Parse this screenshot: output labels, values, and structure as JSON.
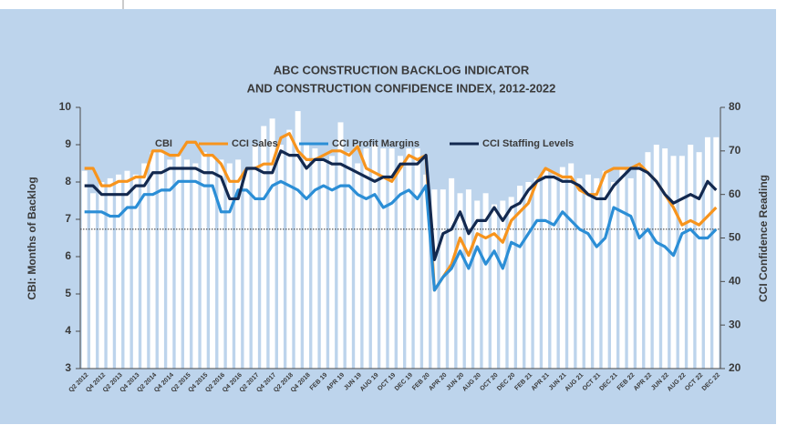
{
  "chart_data": {
    "type": "combo",
    "title": [
      "ABC CONSTRUCTION BACKLOG INDICATOR",
      "AND CONSTRUCTION CONFIDENCE INDEX, 2012-2022"
    ],
    "y_label": "CBI: Months of Backlog",
    "y2_label": "CCI Confidence Reading",
    "categories": [
      "Q2 2012",
      null,
      "Q4 2012",
      null,
      "Q2 2013",
      null,
      "Q4 2013",
      null,
      "Q2 2014",
      null,
      "Q4 2014",
      null,
      "Q2 2015",
      null,
      "Q4 2015",
      null,
      "Q2 2016",
      null,
      "Q4 2016",
      null,
      "Q2 2017",
      null,
      "Q4 2017",
      null,
      "Q2 2018",
      null,
      "Q4 2018",
      null,
      "FEB 19",
      null,
      "APR 19",
      null,
      "JUN 19",
      null,
      "AUG 19",
      null,
      "OCT 19",
      null,
      "DEC 19",
      null,
      "FEB 20",
      null,
      "APR 20",
      null,
      "JUN 20",
      null,
      "AUG 20",
      null,
      "OCT 20",
      null,
      "DEC 20",
      null,
      "FEB 21",
      null,
      "APR 21",
      null,
      "JUN 21",
      null,
      "AUG 21",
      null,
      "OCT 21",
      null,
      "DEC 21",
      null,
      "FEB 22",
      null,
      "APR 22",
      null,
      "JUN 22",
      null,
      "AUG 22",
      null,
      "OCT 22",
      null,
      "DEC 22"
    ],
    "series": [
      {
        "name": "CBI",
        "type": "bar",
        "axis": "y",
        "color": "#ffffff",
        "values": [
          8.3,
          7.7,
          8.0,
          8.1,
          8.2,
          8.3,
          8.2,
          8.5,
          8.8,
          8.8,
          8.6,
          8.7,
          8.6,
          8.5,
          8.8,
          8.7,
          8.6,
          8.5,
          8.6,
          8.3,
          9.0,
          9.5,
          9.7,
          9.0,
          9.4,
          9.9,
          9.0,
          8.9,
          8.6,
          8.7,
          9.6,
          8.8,
          8.5,
          8.9,
          9.0,
          8.9,
          8.9,
          8.7,
          8.9,
          8.9,
          8.2,
          7.8,
          7.8,
          8.1,
          7.7,
          7.8,
          7.5,
          7.7,
          7.4,
          7.5,
          7.6,
          7.9,
          8.0,
          8.1,
          8.3,
          8.2,
          8.4,
          8.5,
          8.1,
          8.2,
          8.1,
          8.3,
          8.0,
          8.4,
          8.1,
          8.5,
          8.8,
          9.0,
          8.9,
          8.7,
          8.7,
          9.0,
          8.8,
          9.2,
          9.2
        ]
      },
      {
        "name": "CCI Sales",
        "type": "line",
        "axis": "y2",
        "color": "#f7941d",
        "values": [
          66,
          66,
          62,
          62,
          63,
          63,
          64,
          64,
          70,
          70,
          69,
          69,
          72,
          72,
          69,
          69,
          67,
          63,
          63,
          66,
          66,
          67,
          67,
          73,
          74,
          70,
          68,
          68,
          69,
          70,
          70,
          69,
          71,
          66,
          65,
          64,
          63,
          66,
          69,
          68,
          69,
          38,
          41,
          44,
          50,
          46,
          51,
          50,
          51,
          49,
          54,
          56,
          58,
          63,
          66,
          65,
          64,
          64,
          61,
          60,
          60,
          65,
          66,
          66,
          66,
          67,
          65,
          63,
          60,
          57,
          53,
          54,
          53,
          55,
          57
        ]
      },
      {
        "name": "CCI Profit Margins",
        "type": "line",
        "axis": "y2",
        "color": "#2b8ed6",
        "values": [
          56,
          56,
          56,
          55,
          55,
          57,
          57,
          60,
          60,
          61,
          61,
          63,
          63,
          63,
          62,
          62,
          56,
          56,
          61,
          61,
          59,
          59,
          62,
          63,
          62,
          61,
          59,
          61,
          62,
          61,
          62,
          62,
          60,
          59,
          60,
          57,
          58,
          60,
          61,
          59,
          62,
          38,
          41,
          43,
          47,
          43,
          48,
          44,
          47,
          43,
          49,
          48,
          51,
          54,
          54,
          53,
          56,
          54,
          52,
          51,
          48,
          50,
          57,
          56,
          55,
          50,
          52,
          49,
          48,
          46,
          51,
          52,
          50,
          50,
          52
        ]
      },
      {
        "name": "CCI Staffing Levels",
        "type": "line",
        "axis": "y2",
        "color": "#13294f",
        "values": [
          62,
          62,
          60,
          60,
          60,
          60,
          62,
          62,
          65,
          65,
          66,
          66,
          66,
          66,
          65,
          65,
          64,
          59,
          59,
          66,
          66,
          65,
          65,
          70,
          69,
          69,
          66,
          68,
          68,
          67,
          67,
          66,
          65,
          64,
          63,
          64,
          64,
          67,
          67,
          67,
          69,
          45,
          51,
          52,
          56,
          51,
          54,
          54,
          57,
          54,
          57,
          58,
          61,
          63,
          64,
          64,
          63,
          63,
          62,
          60,
          59,
          59,
          62,
          64,
          66,
          66,
          65,
          63,
          60,
          58,
          59,
          60,
          59,
          63,
          61
        ]
      }
    ],
    "ylim": [
      3,
      10
    ],
    "yticks": [
      3,
      4,
      5,
      6,
      7,
      8,
      9,
      10
    ],
    "y2lim": [
      20,
      80
    ],
    "y2ticks": [
      20,
      30,
      40,
      50,
      60,
      70,
      80
    ],
    "reference_line": {
      "axis": "y2",
      "value": 52
    },
    "legend": "top"
  }
}
